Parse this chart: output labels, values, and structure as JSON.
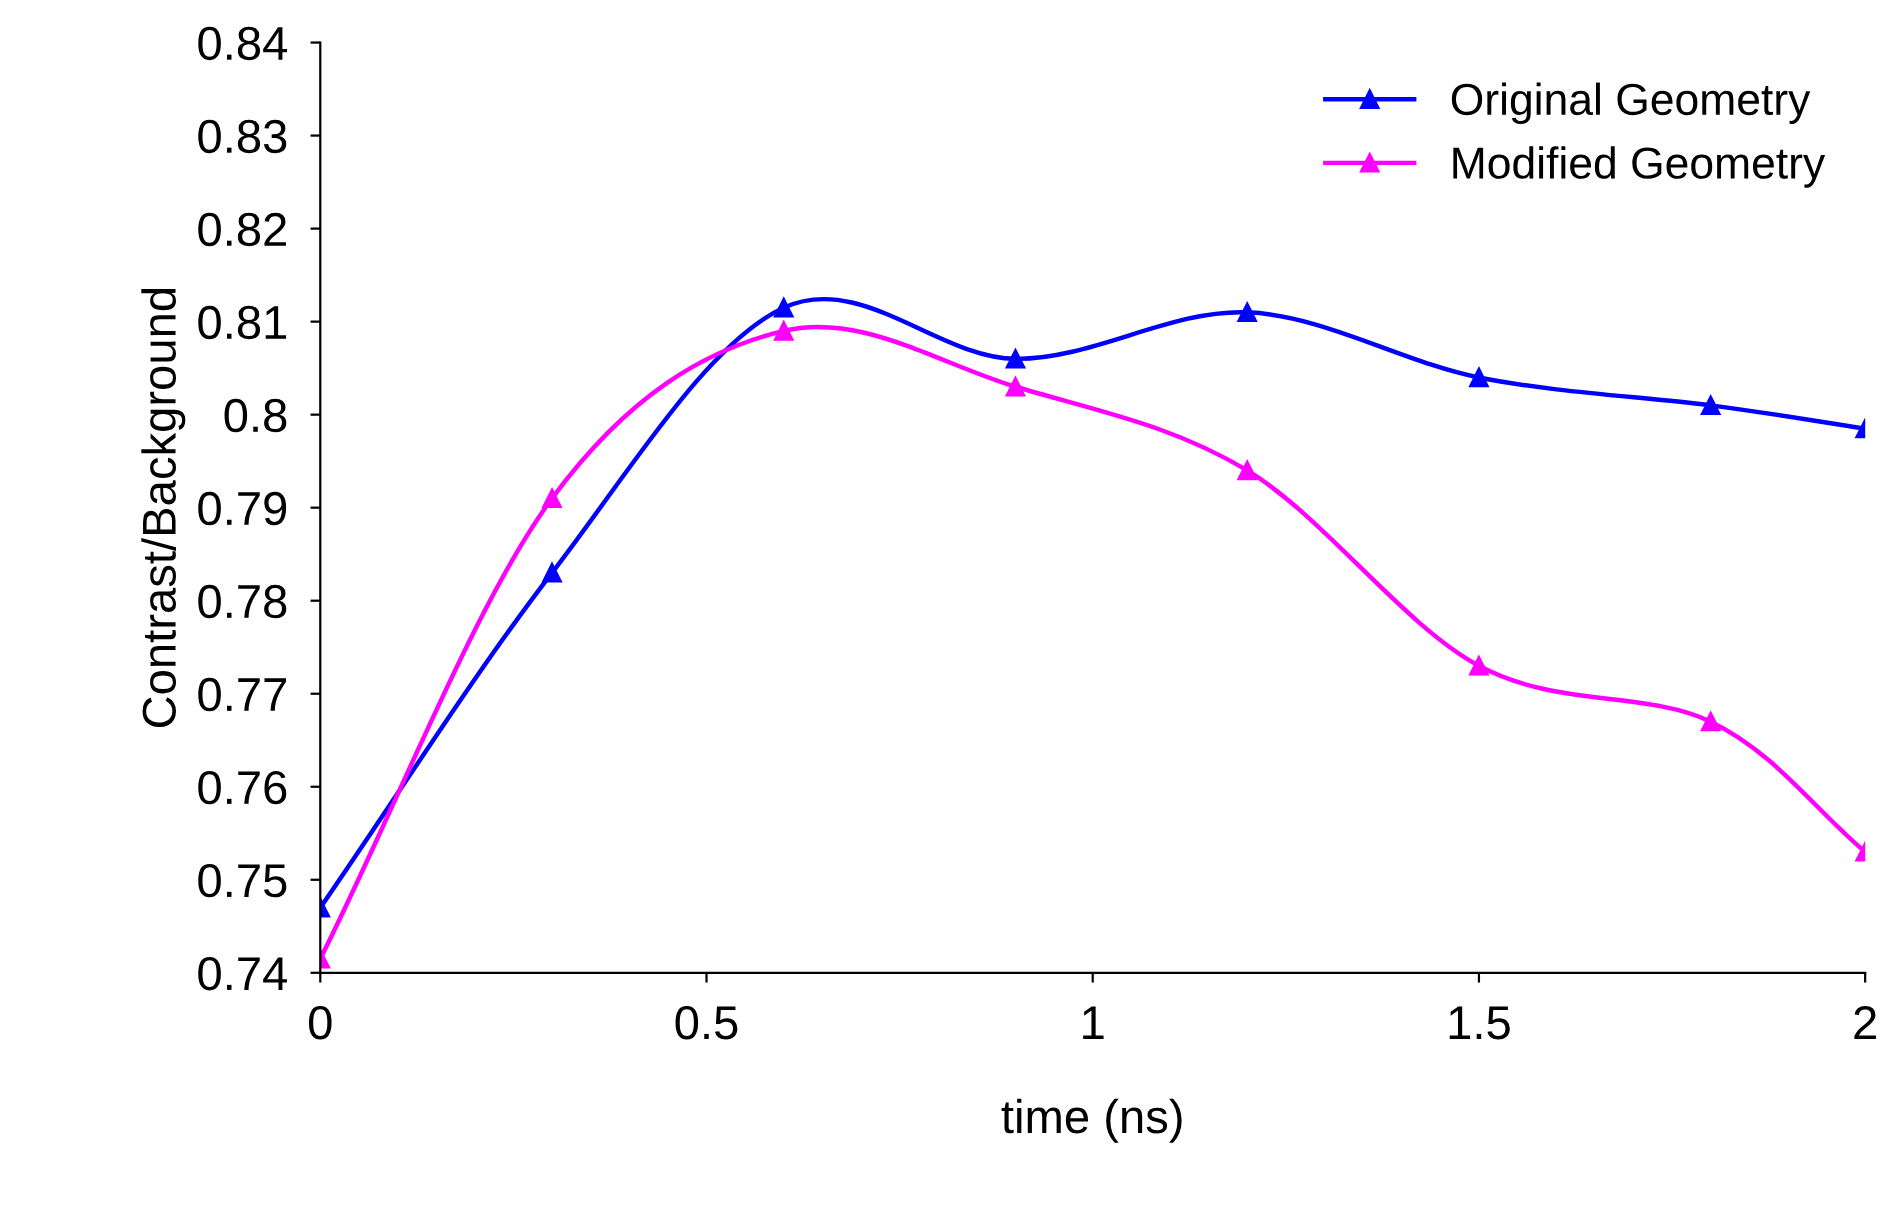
{
  "chart_data": {
    "type": "line",
    "xlabel": "time (ns)",
    "ylabel": "Contrast/Background",
    "x": [
      0,
      0.3,
      0.6,
      0.9,
      1.2,
      1.5,
      1.8,
      2.0
    ],
    "series": [
      {
        "name": "Original Geometry",
        "color": "#0000ff",
        "values": [
          0.747,
          0.783,
          0.8115,
          0.806,
          0.811,
          0.804,
          0.801,
          0.7985
        ]
      },
      {
        "name": "Modified Geometry",
        "color": "#ff00ff",
        "values": [
          0.7415,
          0.791,
          0.809,
          0.803,
          0.794,
          0.773,
          0.767,
          0.753
        ]
      }
    ],
    "xlim": [
      0,
      2
    ],
    "ylim": [
      0.74,
      0.84
    ],
    "xticks": [
      0,
      0.5,
      1,
      1.5,
      2
    ],
    "yticks": [
      0.74,
      0.75,
      0.76,
      0.77,
      0.78,
      0.79,
      0.8,
      0.81,
      0.82,
      0.83,
      0.84
    ],
    "marker": "triangle",
    "line_style": "solid",
    "grid": false,
    "legend": "top right"
  }
}
